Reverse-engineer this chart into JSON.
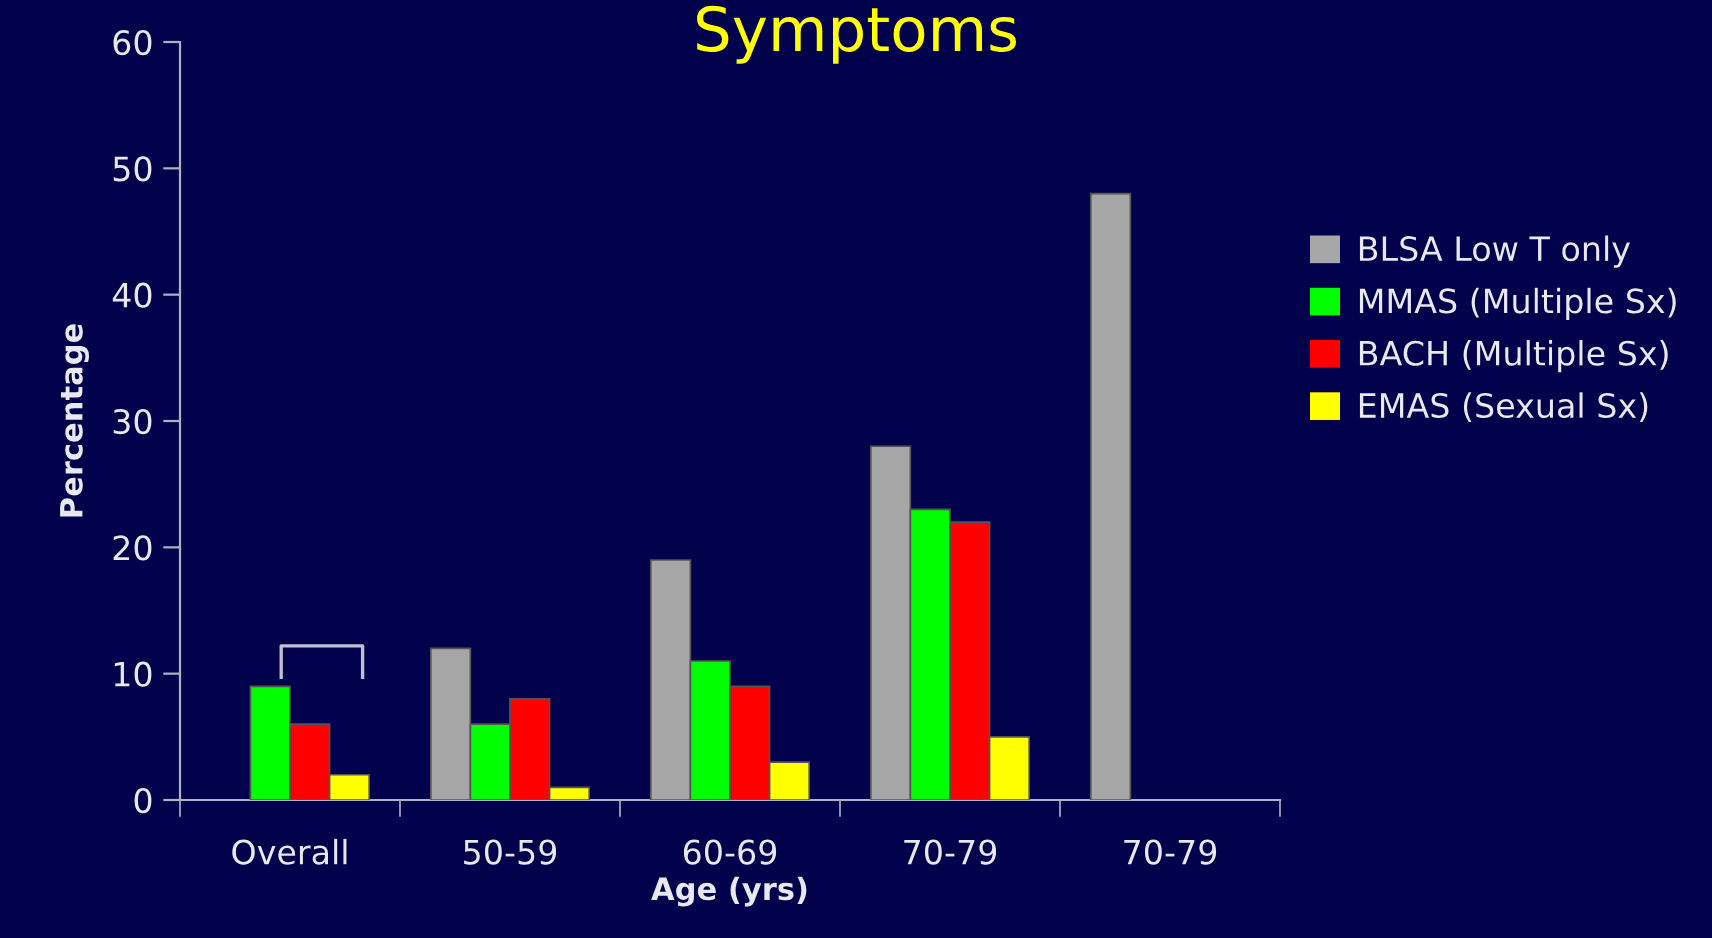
{
  "chart_data": {
    "type": "bar",
    "title": "Symptoms",
    "xlabel": "Age (yrs)",
    "ylabel": "Percentage",
    "categories": [
      "Overall",
      "50-59",
      "60-69",
      "70-79",
      "70-79"
    ],
    "series": [
      {
        "name": "BLSA Low T only",
        "color": "#a6a6a6",
        "values": [
          null,
          12,
          19,
          28,
          48
        ]
      },
      {
        "name": "MMAS (Multiple Sx)",
        "color": "#00ff00",
        "values": [
          9,
          6,
          11,
          23,
          null
        ]
      },
      {
        "name": "BACH (Multiple Sx)",
        "color": "#ff0000",
        "values": [
          6,
          8,
          9,
          22,
          null
        ]
      },
      {
        "name": "EMAS (Sexual Sx)",
        "color": "#ffff00",
        "values": [
          2,
          1,
          3,
          5,
          null
        ]
      }
    ],
    "ylim": [
      0,
      60
    ],
    "yticks": [
      0,
      10,
      20,
      30,
      40,
      50,
      60
    ],
    "grid": false,
    "legend": "right"
  }
}
